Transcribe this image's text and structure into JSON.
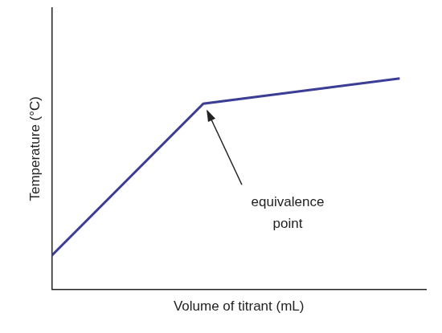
{
  "chart_data": {
    "type": "line",
    "x_label": "Volume of titrant (mL)",
    "y_label": "Temperature (°C)",
    "x": [
      0,
      4.05,
      9.3
    ],
    "values": [
      1.2,
      6.6,
      7.5
    ],
    "color": "#3b3d96",
    "xlim": [
      0,
      10
    ],
    "ylim": [
      0,
      10
    ],
    "tick_labels": false,
    "grid": false,
    "annotations": [
      {
        "text": "equivalence point",
        "x": 4.05,
        "y": 6.6
      }
    ]
  }
}
